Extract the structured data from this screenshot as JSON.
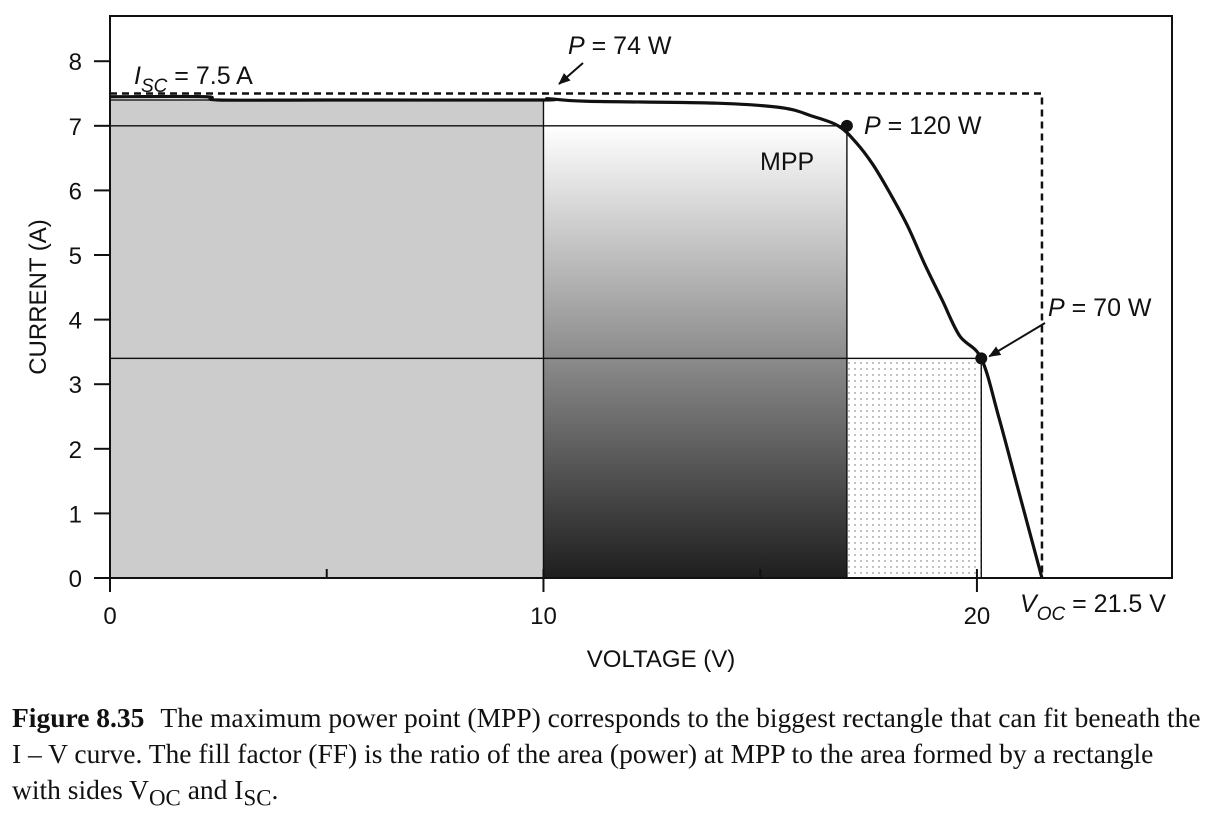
{
  "chart_data": {
    "type": "line",
    "xlabel": "VOLTAGE (V)",
    "ylabel": "CURRENT (A)",
    "xlim": [
      0,
      24.5
    ],
    "ylim": [
      0,
      8.7
    ],
    "x_ticks": [
      0,
      10,
      20
    ],
    "y_ticks": [
      0,
      1,
      2,
      3,
      4,
      5,
      6,
      7,
      8
    ],
    "grid": false,
    "series": [
      {
        "x": [
          0,
          2.2,
          2.5,
          5,
          9.9,
          10.1,
          11,
          14,
          15.5,
          16.2,
          16.8,
          17.2,
          17.6,
          18.0,
          18.4,
          18.8,
          19.2,
          19.6,
          20.1,
          20.5,
          20.9,
          21.2,
          21.5
        ],
        "values": [
          7.45,
          7.45,
          7.4,
          7.4,
          7.4,
          7.42,
          7.38,
          7.35,
          7.28,
          7.15,
          7.0,
          6.75,
          6.4,
          5.95,
          5.45,
          4.85,
          4.3,
          3.75,
          3.4,
          2.5,
          1.5,
          0.75,
          0
        ]
      }
    ],
    "rectangles": [
      {
        "label": "P = 74 W",
        "v": 10,
        "i": 7.4,
        "fill": "#cccccc"
      },
      {
        "label": "P = 120 W",
        "v": 17,
        "i": 7.0,
        "fill": "gradient"
      },
      {
        "label": "P = 70 W",
        "v": 20.1,
        "i": 3.4,
        "fill": "dotted"
      }
    ],
    "points": [
      {
        "name": "MPP",
        "x": 17,
        "y": 7.0
      },
      {
        "name": "P70",
        "x": 20.1,
        "y": 3.4
      }
    ],
    "reference_box": {
      "voc": 21.5,
      "isc": 7.5
    },
    "annotations": {
      "isc": {
        "var": "I",
        "sub": "SC",
        "text": " = 7.5 A"
      },
      "p74": {
        "var": "P",
        "text": " = 74 W"
      },
      "p120": {
        "var": "P",
        "text": " = 120 W"
      },
      "mpp": {
        "text": "MPP"
      },
      "p70": {
        "var": "P",
        "text": " = 70 W"
      },
      "voc": {
        "var": "V",
        "sub": "OC",
        "text": " = 21.5 V"
      }
    }
  },
  "caption": {
    "number": "Figure 8.35",
    "text": "The maximum power point (MPP) corresponds to the biggest rectangle that can fit beneath the I – V curve. The fill factor (FF) is the ratio of the area (power) at MPP to the area formed by a rectangle with sides V",
    "voc_sub": "OC",
    "middle": " and I",
    "isc_sub": "SC",
    "end": "."
  }
}
